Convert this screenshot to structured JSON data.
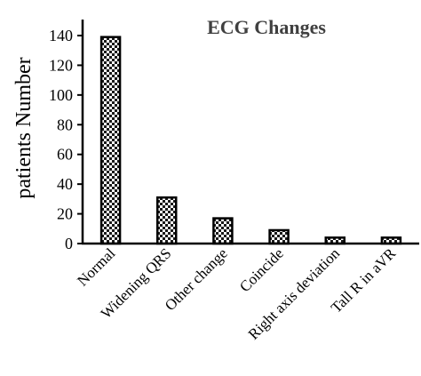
{
  "chart_data": {
    "type": "bar",
    "title": "ECG Changes",
    "xlabel": "",
    "ylabel": "patients Number",
    "categories": [
      "Normal",
      "Widening QRS",
      "Other change",
      "Coincide",
      "Right axis deviation",
      "Tall R in aVR"
    ],
    "values": [
      139,
      31,
      17,
      9,
      4,
      4
    ],
    "ylim": [
      0,
      140
    ],
    "yticks": [
      0,
      20,
      40,
      60,
      80,
      100,
      120,
      140
    ],
    "grid": false,
    "legend": "none",
    "colors": {
      "bar_pattern_dark": "#1a1a1a",
      "bar_pattern_light": "#ffffff",
      "bar_outline": "#000000",
      "axis": "#000000",
      "title": "#404040"
    }
  }
}
